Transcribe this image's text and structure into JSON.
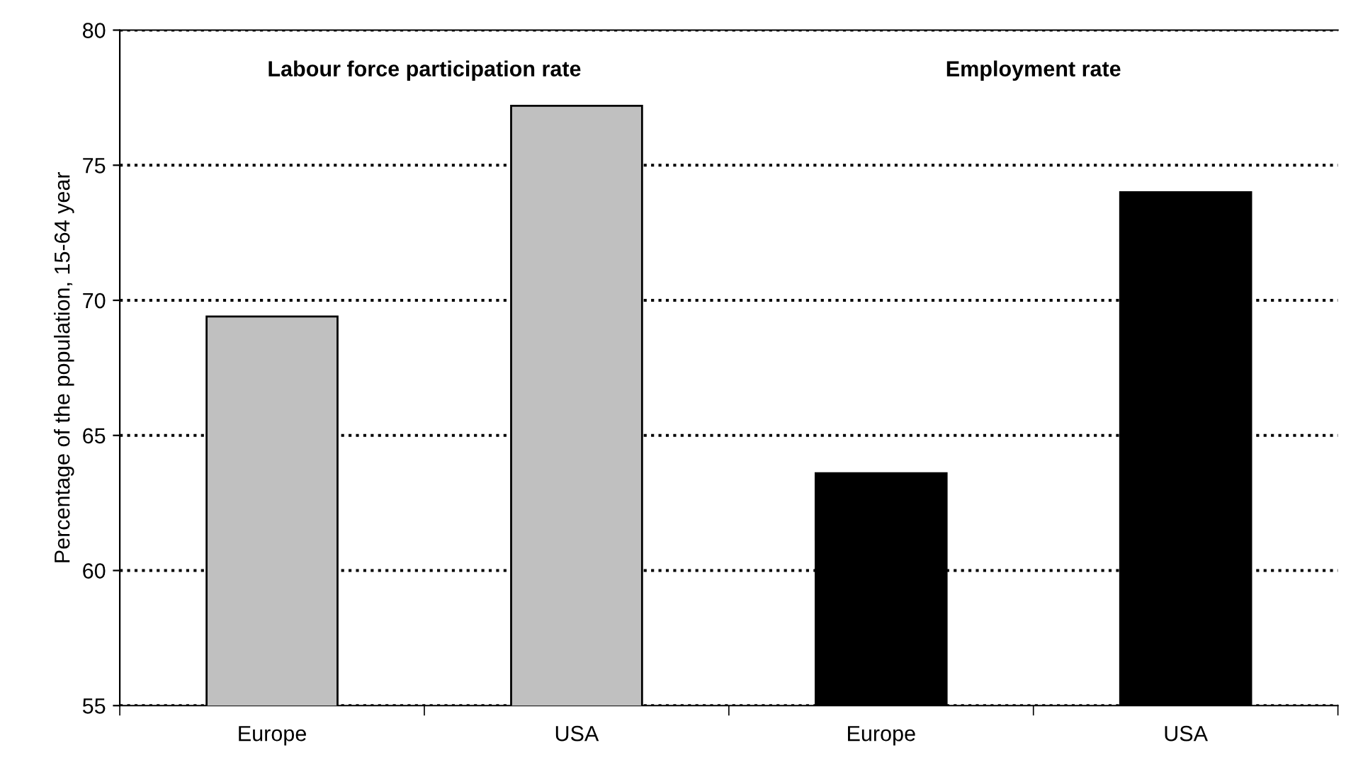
{
  "chart_data": {
    "type": "bar",
    "ylabel": "Percentage of the population, 15-64 year",
    "categories": [
      "Europe",
      "USA",
      "Europe",
      "USA"
    ],
    "values": [
      69.4,
      77.2,
      63.6,
      74.0
    ],
    "colors": [
      "#c0c0c0",
      "#c0c0c0",
      "#000000",
      "#000000"
    ],
    "annotations": [
      "Labour force participation rate",
      "Employment rate"
    ],
    "ylim": [
      55,
      80
    ],
    "yticks": [
      55,
      60,
      65,
      70,
      75,
      80
    ],
    "grid": "y",
    "line_style": "dotted"
  }
}
